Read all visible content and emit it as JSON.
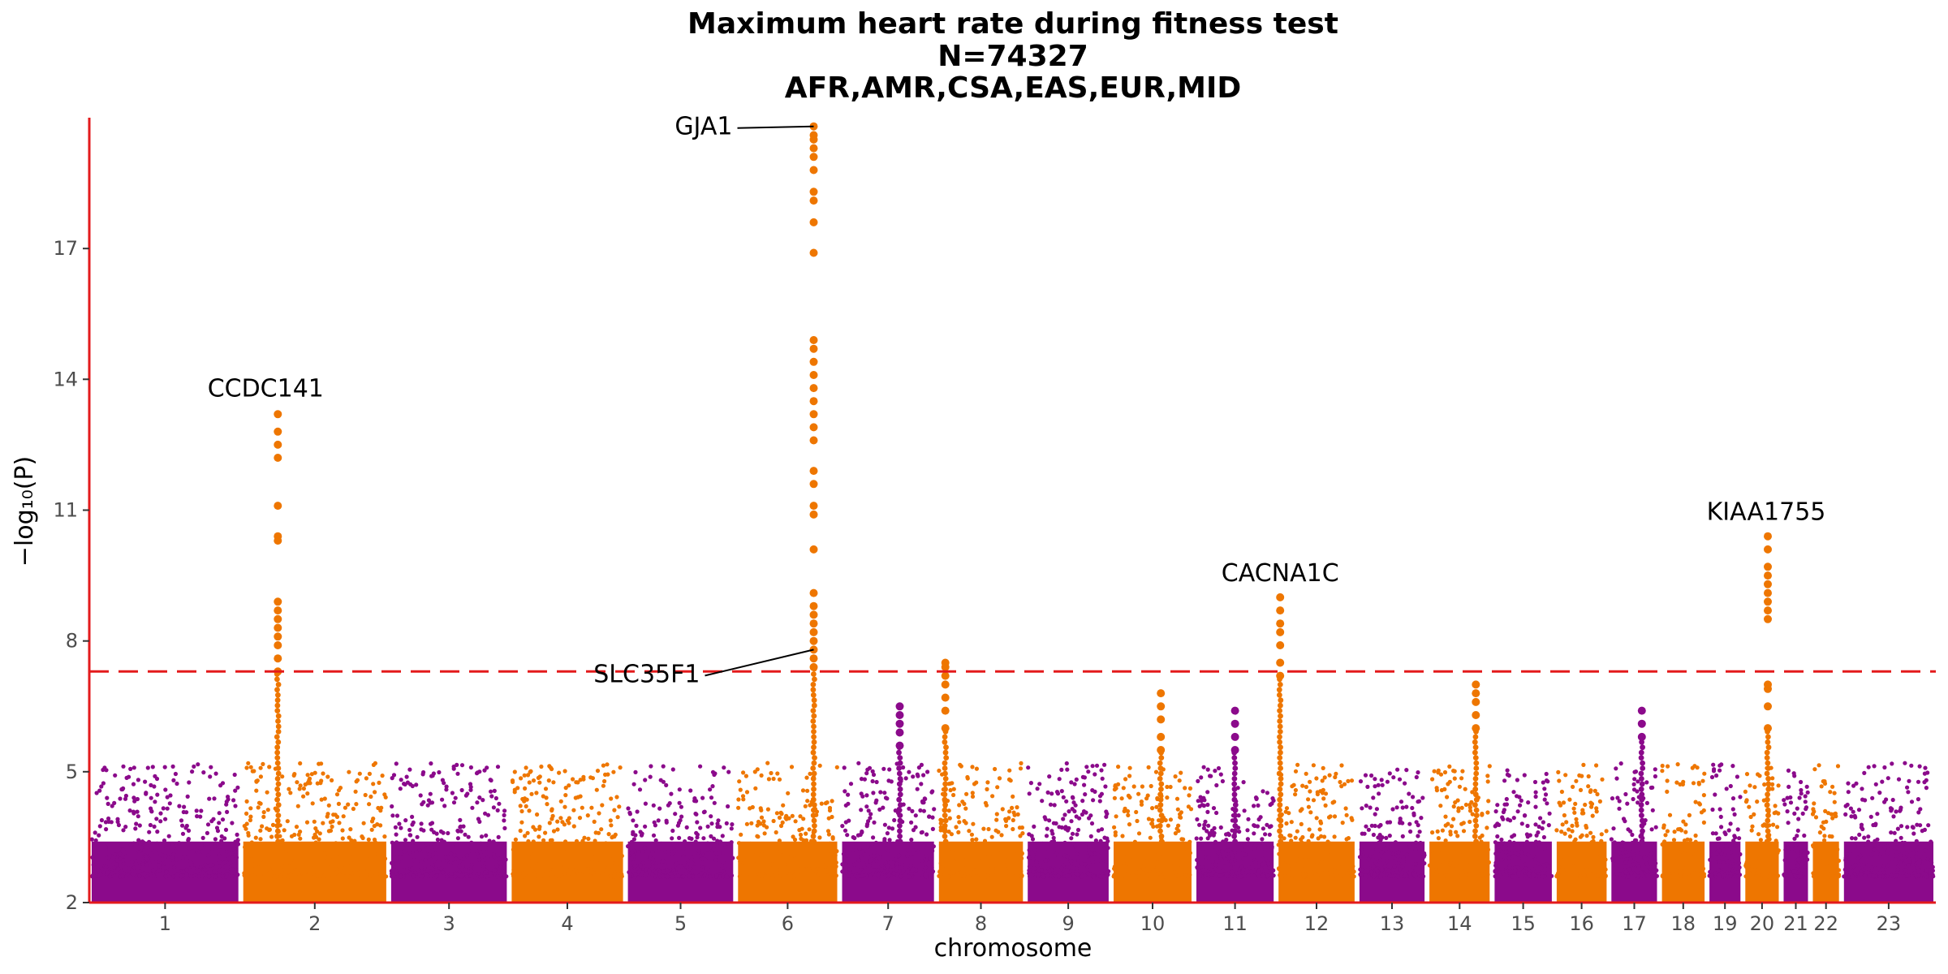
{
  "chart_data": {
    "type": "scatter",
    "subtype": "manhattan",
    "title": [
      "Maximum heart rate during fitness test",
      "N=74327",
      "AFR,AMR,CSA,EAS,EUR,MID"
    ],
    "xlabel": "chromosome",
    "ylabel": "−log₁₀(P)",
    "ylim": [
      2,
      20
    ],
    "yticks": [
      2,
      5,
      8,
      11,
      14,
      17
    ],
    "significance_threshold": 7.3,
    "threshold_color": "#e31a1c",
    "colors": {
      "odd": "#8b0a8b",
      "even": "#ee7600",
      "axis": "#e31a1c"
    },
    "chromosomes": [
      {
        "label": "1",
        "length": 249
      },
      {
        "label": "2",
        "length": 243
      },
      {
        "label": "3",
        "length": 198
      },
      {
        "label": "4",
        "length": 191
      },
      {
        "label": "5",
        "length": 181
      },
      {
        "label": "6",
        "length": 171
      },
      {
        "label": "7",
        "length": 159
      },
      {
        "label": "8",
        "length": 146
      },
      {
        "label": "9",
        "length": 141
      },
      {
        "label": "10",
        "length": 136
      },
      {
        "label": "11",
        "length": 135
      },
      {
        "label": "12",
        "length": 133
      },
      {
        "label": "13",
        "length": 115
      },
      {
        "label": "14",
        "length": 107
      },
      {
        "label": "15",
        "length": 102
      },
      {
        "label": "16",
        "length": 90
      },
      {
        "label": "17",
        "length": 83
      },
      {
        "label": "18",
        "length": 78
      },
      {
        "label": "19",
        "length": 59
      },
      {
        "label": "20",
        "length": 63
      },
      {
        "label": "21",
        "length": 48
      },
      {
        "label": "22",
        "length": 51
      },
      {
        "label": "23",
        "length": 155
      }
    ],
    "peaks": [
      {
        "chr": "2",
        "pos": 0.25,
        "values": [
          7.3,
          7.6,
          7.9,
          8.1,
          8.3,
          8.5,
          8.7,
          8.9,
          10.3,
          10.4,
          11.1,
          12.2,
          12.5,
          12.8,
          13.2
        ]
      },
      {
        "chr": "6",
        "pos": 0.75,
        "values": [
          7.4,
          7.6,
          7.8,
          8.0,
          8.2,
          8.4,
          8.6,
          8.8,
          9.1,
          10.1,
          10.9,
          11.1,
          11.6,
          11.9,
          12.6,
          12.9,
          13.2,
          13.5,
          13.8,
          14.1,
          14.4,
          14.7,
          14.9,
          16.9,
          17.6,
          18.1,
          18.3,
          18.8,
          19.1,
          19.3,
          19.5,
          19.6,
          19.8
        ]
      },
      {
        "chr": "8",
        "pos": 0.1,
        "values": [
          6.0,
          6.4,
          6.7,
          7.0,
          7.2,
          7.4,
          7.5
        ]
      },
      {
        "chr": "12",
        "pos": 0.05,
        "values": [
          7.2,
          7.5,
          7.9,
          8.2,
          8.4,
          8.7,
          9.0
        ]
      },
      {
        "chr": "14",
        "pos": 0.75,
        "values": [
          6.0,
          6.3,
          6.6,
          6.8,
          7.0
        ]
      },
      {
        "chr": "20",
        "pos": 0.65,
        "values": [
          6.0,
          6.5,
          6.9,
          7.0,
          8.5,
          8.7,
          8.9,
          9.1,
          9.3,
          9.5,
          9.7,
          10.1,
          10.4
        ]
      },
      {
        "chr": "7",
        "pos": 0.62,
        "values": [
          5.6,
          5.9,
          6.1,
          6.3,
          6.5
        ]
      },
      {
        "chr": "10",
        "pos": 0.6,
        "values": [
          5.5,
          5.8,
          6.2,
          6.5,
          6.8
        ]
      },
      {
        "chr": "11",
        "pos": 0.5,
        "values": [
          5.5,
          5.8,
          6.1,
          6.4
        ]
      },
      {
        "chr": "17",
        "pos": 0.65,
        "values": [
          5.8,
          6.1,
          6.4
        ]
      }
    ],
    "annotations": [
      {
        "label": "CCDC141",
        "chr": "2",
        "value": 13.2
      },
      {
        "label": "GJA1",
        "chr": "6",
        "value": 19.8
      },
      {
        "label": "SLC35F1",
        "chr": "6",
        "value": 7.8
      },
      {
        "label": "CACNA1C",
        "chr": "12",
        "value": 9.0
      },
      {
        "label": "KIAA1755",
        "chr": "20",
        "value": 10.4
      }
    ]
  }
}
